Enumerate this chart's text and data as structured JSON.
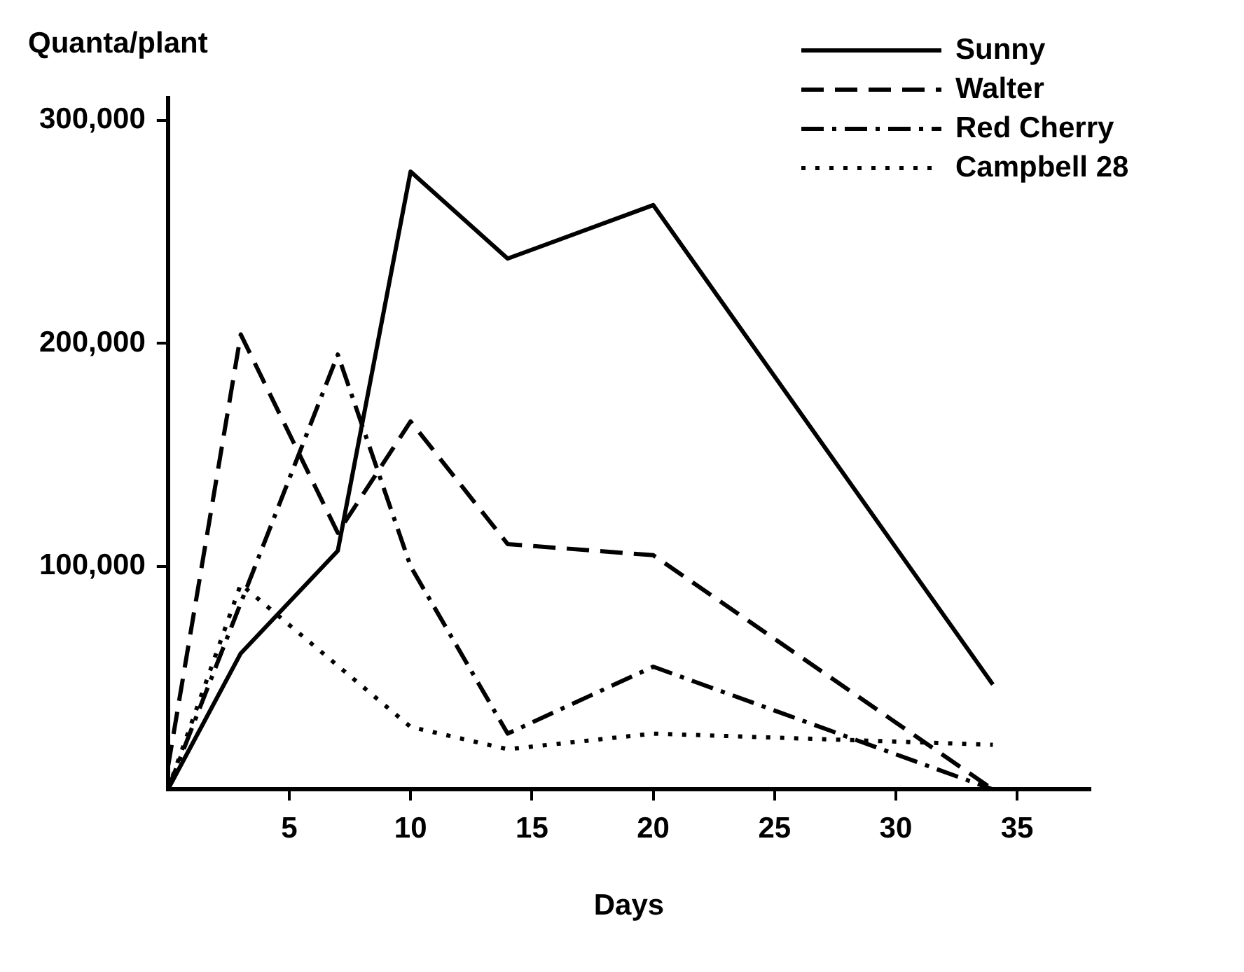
{
  "chart_data": {
    "type": "line",
    "ylabel": "Quanta/plant",
    "xlabel": "Days",
    "xlim": [
      0,
      38
    ],
    "xticks": [
      5,
      10,
      15,
      20,
      25,
      30,
      35
    ],
    "ylim": [
      0,
      310000
    ],
    "yticks": [
      {
        "value": 100000,
        "label": "100,000"
      },
      {
        "value": 200000,
        "label": "200,000"
      },
      {
        "value": 300000,
        "label": "300,000"
      }
    ],
    "grid": false,
    "legend": "top right",
    "marker": "none",
    "series": [
      {
        "name": "Sunny",
        "color": "#000000",
        "line_style": "solid",
        "x": [
          0,
          3,
          7,
          10,
          14,
          20,
          34
        ],
        "values": [
          0,
          61000,
          107000,
          277000,
          238000,
          262000,
          47000
        ]
      },
      {
        "name": "Walter",
        "color": "#000000",
        "line_style": "dashed",
        "x": [
          0,
          3,
          7,
          10,
          14,
          20,
          34
        ],
        "values": [
          10000,
          204000,
          115000,
          165000,
          110000,
          105000,
          0
        ]
      },
      {
        "name": "Red Cherry",
        "color": "#000000",
        "line_style": "dashdot",
        "x": [
          0,
          7,
          10,
          14,
          20,
          34
        ],
        "values": [
          0,
          195000,
          100000,
          25000,
          55000,
          0
        ]
      },
      {
        "name": "Campbell 28",
        "color": "#000000",
        "line_style": "dotted",
        "x": [
          0,
          3,
          10,
          14,
          20,
          34
        ],
        "values": [
          0,
          92000,
          28000,
          18000,
          25000,
          20000
        ]
      }
    ]
  }
}
